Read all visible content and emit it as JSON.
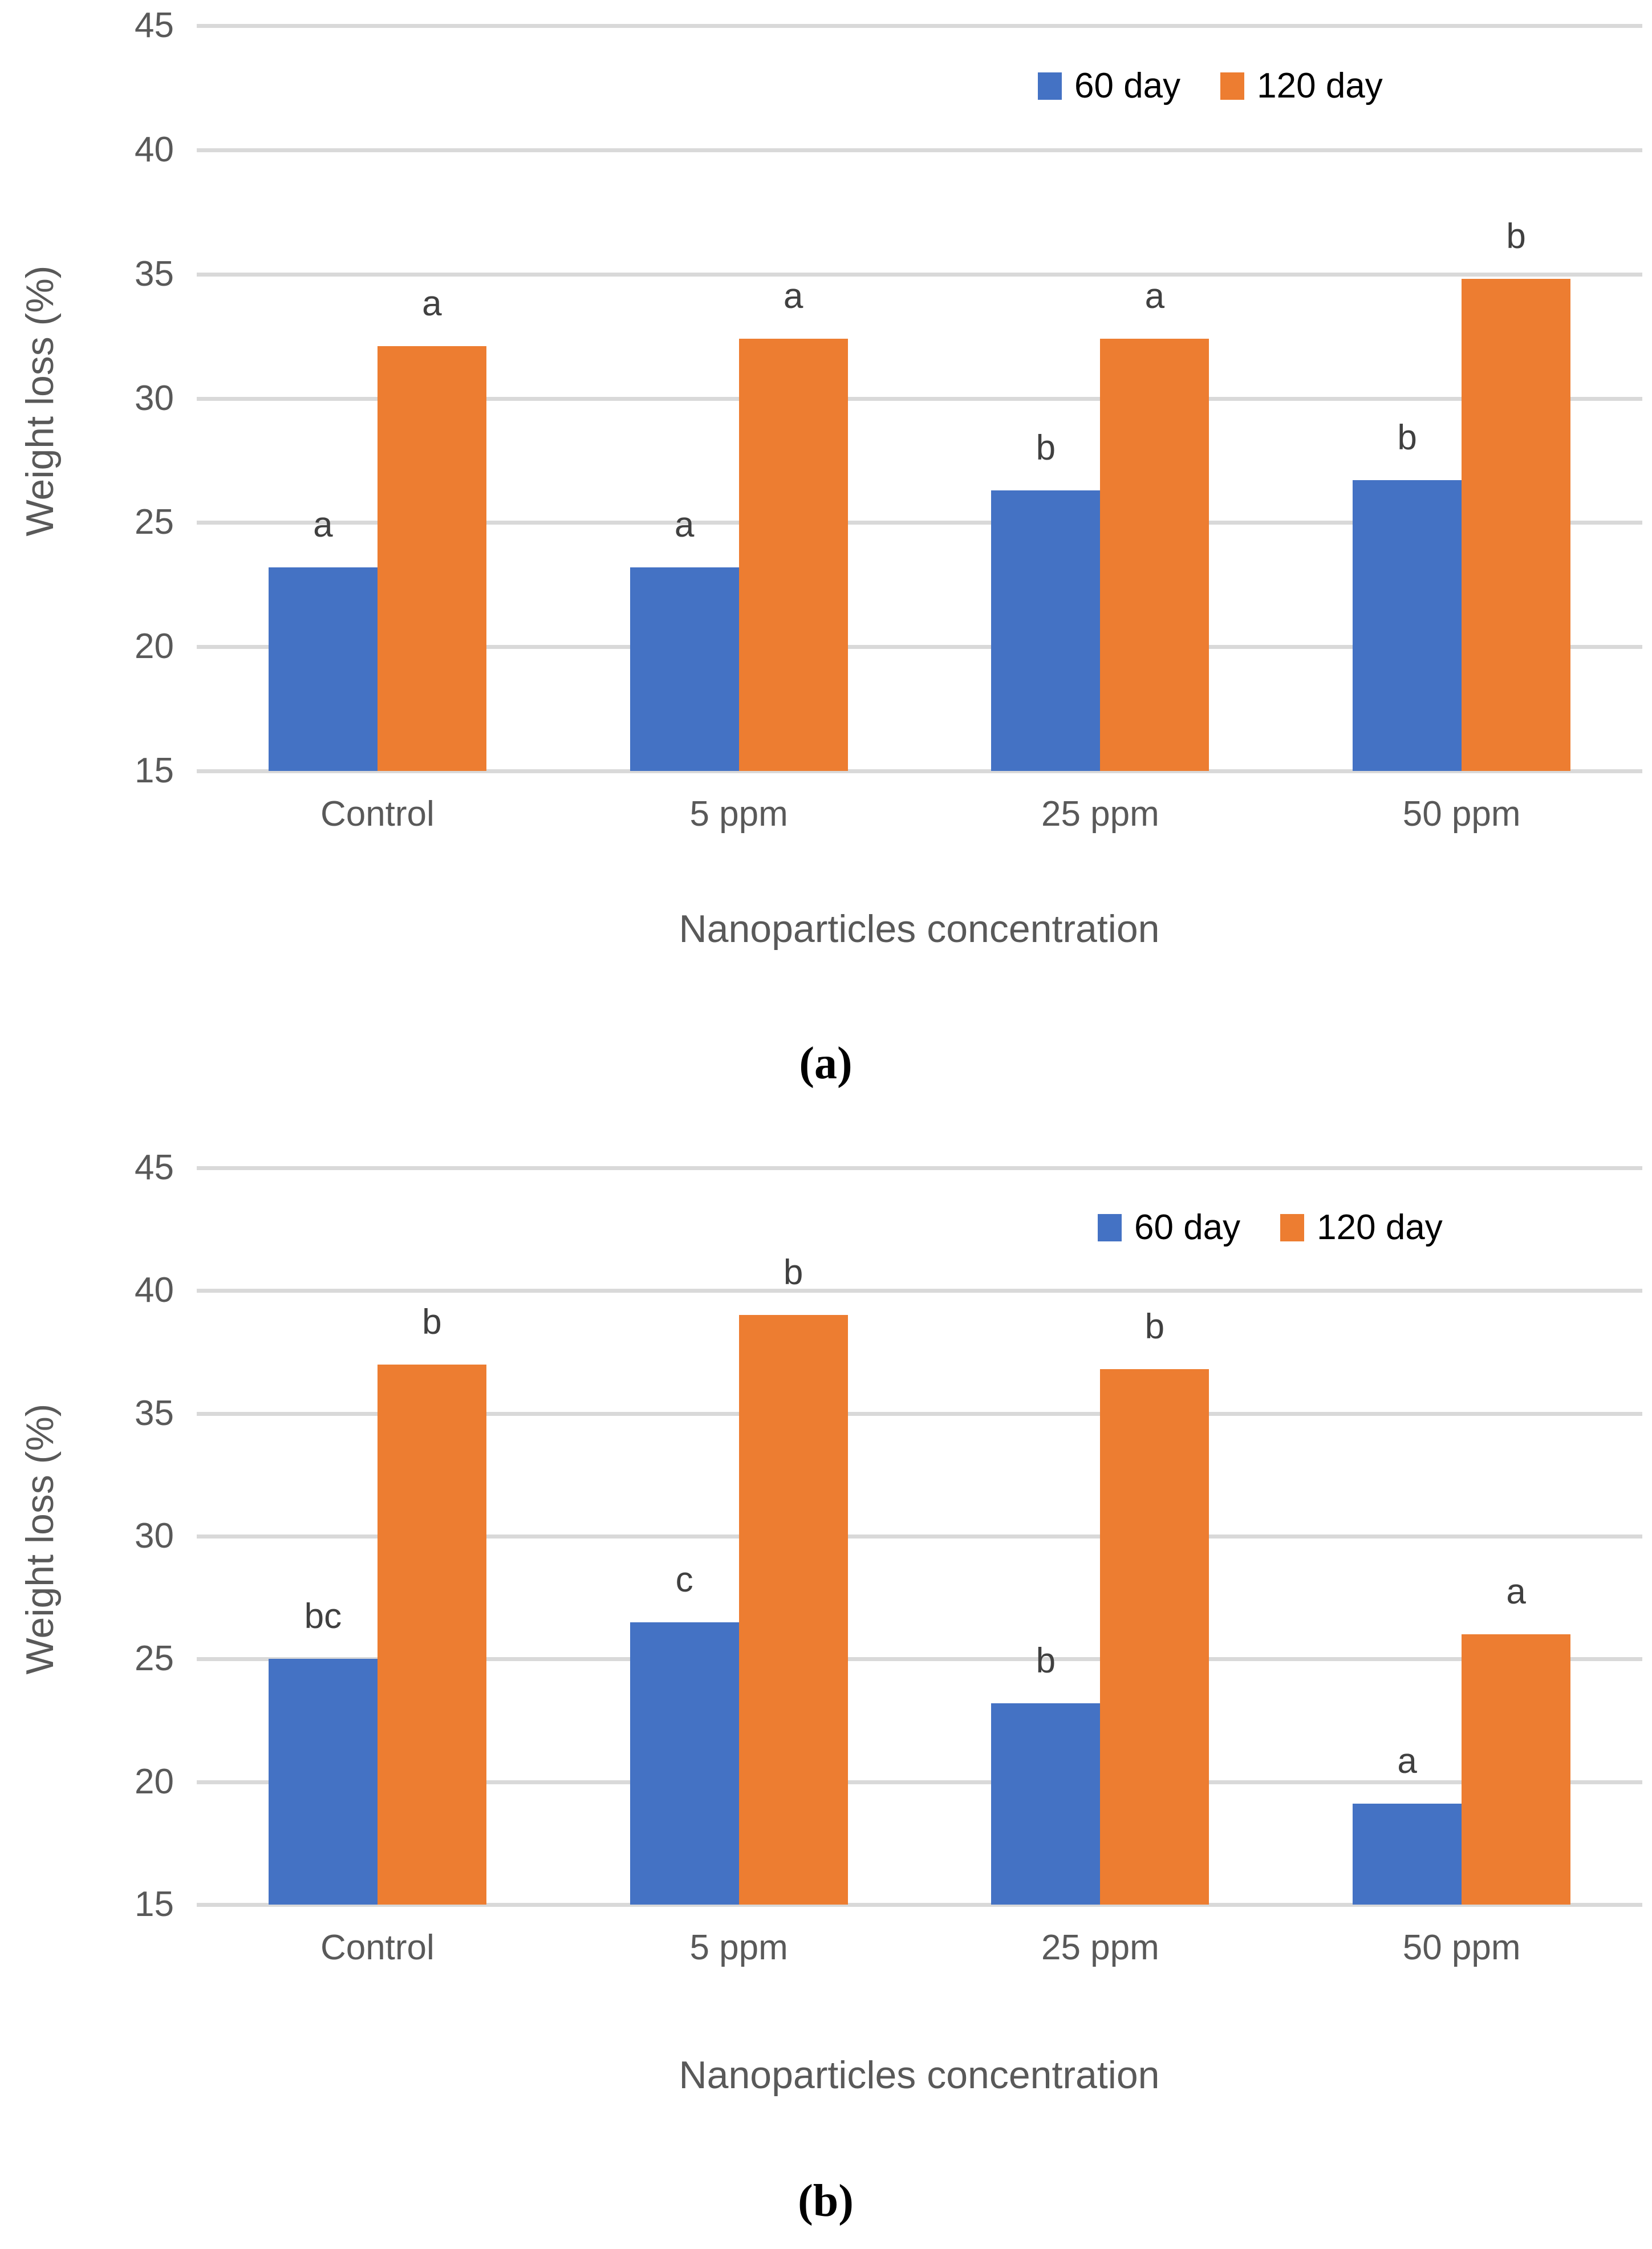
{
  "figure": {
    "y_axis_label": "Weight loss (%)",
    "x_axis_label": "Nanoparticles concentration",
    "legend_labels": [
      "60 day",
      "120 day"
    ],
    "colors": {
      "series_60_day": "#4472C4",
      "series_120_day": "#ED7D31",
      "gridline": "#D9D9D9",
      "tick_text": "#595959",
      "annotation_text": "#404040"
    }
  },
  "chart_data": [
    {
      "type": "bar",
      "panel_label": "(a)",
      "categories": [
        "Control",
        "5 ppm",
        "25 ppm",
        "50 ppm"
      ],
      "series": [
        {
          "name": "60 day",
          "color": "#4472C4",
          "values": [
            23.2,
            23.2,
            26.3,
            26.7
          ],
          "letters": [
            "a",
            "a",
            "b",
            "b"
          ]
        },
        {
          "name": "120 day",
          "color": "#ED7D31",
          "values": [
            32.1,
            32.4,
            32.4,
            34.8
          ],
          "letters": [
            "a",
            "a",
            "a",
            "b"
          ]
        }
      ],
      "xlabel": "Nanoparticles concentration",
      "ylabel": "Weight loss (%)",
      "ylim": [
        15,
        45
      ],
      "ytick_step": 5,
      "grid": true,
      "legend_position": "top-right"
    },
    {
      "type": "bar",
      "panel_label": "(b)",
      "categories": [
        "Control",
        "5 ppm",
        "25 ppm",
        "50 ppm"
      ],
      "series": [
        {
          "name": "60 day",
          "color": "#4472C4",
          "values": [
            25.0,
            26.5,
            23.2,
            19.1
          ],
          "letters": [
            "bc",
            "c",
            "b",
            "a"
          ]
        },
        {
          "name": "120 day",
          "color": "#ED7D31",
          "values": [
            37.0,
            39.0,
            36.8,
            26.0
          ],
          "letters": [
            "b",
            "b",
            "b",
            "a"
          ]
        }
      ],
      "xlabel": "Nanoparticles concentration",
      "ylabel": "Weight loss (%)",
      "ylim": [
        15,
        45
      ],
      "ytick_step": 5,
      "grid": true,
      "legend_position": "top-right"
    }
  ]
}
